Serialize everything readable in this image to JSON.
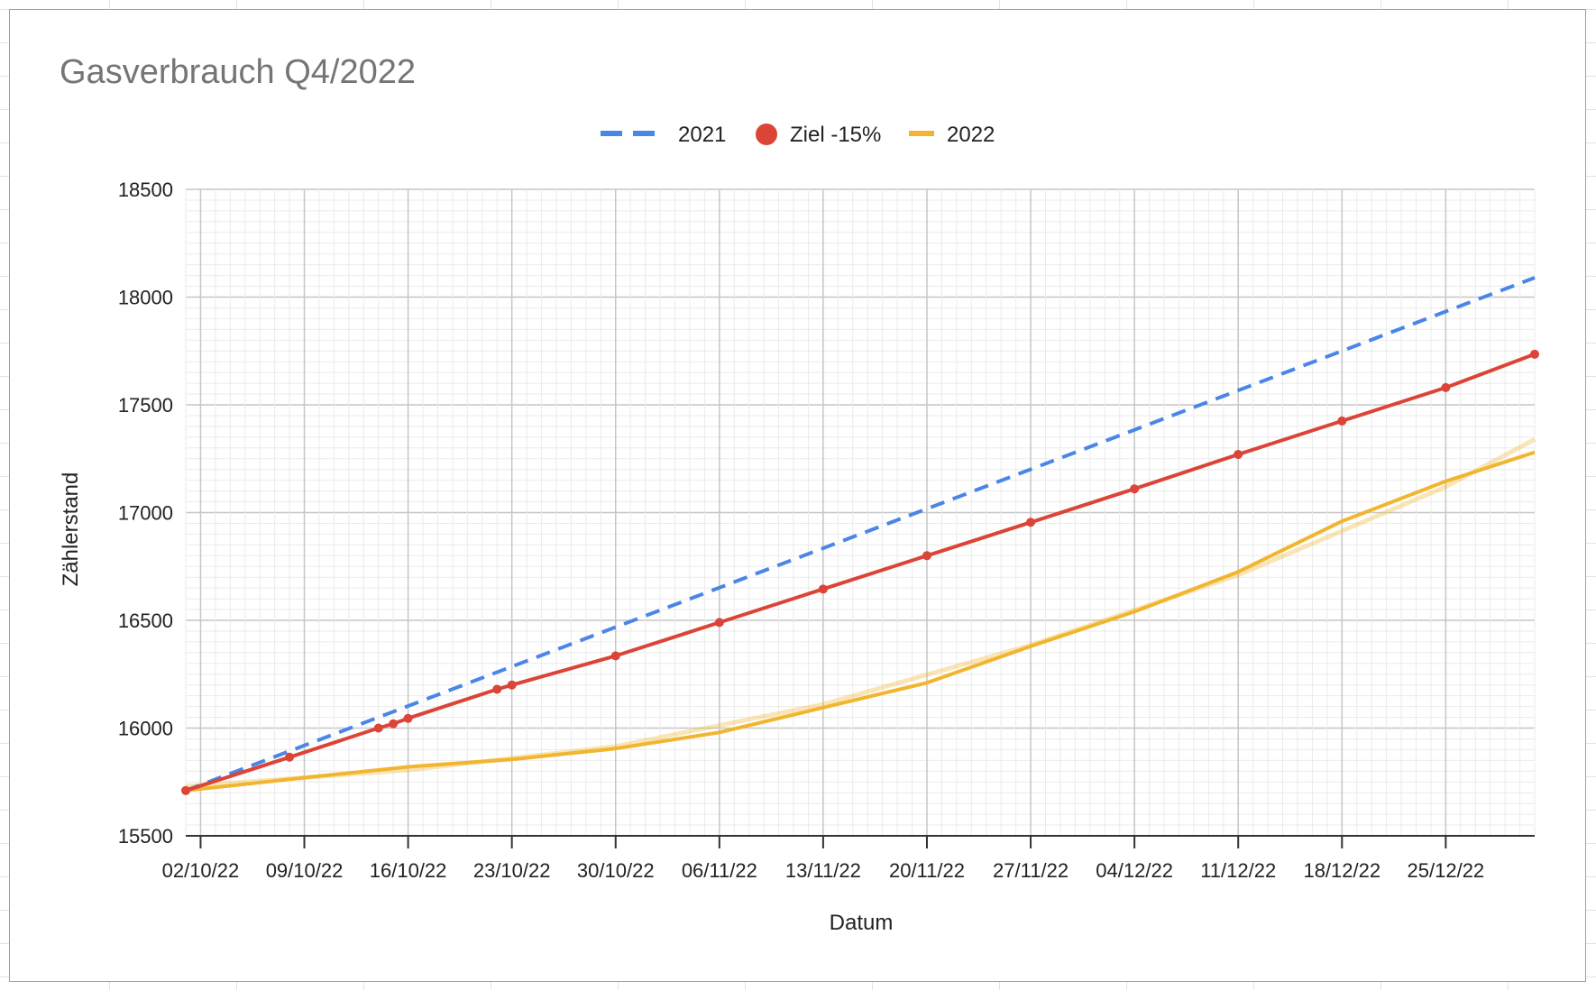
{
  "chart_data": {
    "type": "line",
    "title": "Gasverbrauch Q4/2022",
    "xlabel": "Datum",
    "ylabel": "Zählerstand",
    "ylim": [
      15500,
      18500
    ],
    "yticks": [
      15500,
      16000,
      16500,
      17000,
      17500,
      18000,
      18500
    ],
    "xticks": [
      "02/10/22",
      "09/10/22",
      "16/10/22",
      "23/10/22",
      "30/10/22",
      "06/11/22",
      "13/11/22",
      "20/11/22",
      "27/11/22",
      "04/12/22",
      "11/12/22",
      "18/12/22",
      "25/12/22"
    ],
    "xrange": [
      "2022-10-01",
      "2022-12-31"
    ],
    "legend_position": "top",
    "grid": true,
    "series": [
      {
        "name": "2021",
        "color": "#4a86e8",
        "style": "dashed",
        "points": [
          [
            "2022-10-01",
            15710
          ],
          [
            "2022-12-31",
            18090
          ]
        ]
      },
      {
        "name": "Ziel -15%",
        "color": "#db4437",
        "style": "solid-markers",
        "points": [
          [
            "2022-10-01",
            15710
          ],
          [
            "2022-10-08",
            15865
          ],
          [
            "2022-10-14",
            16000
          ],
          [
            "2022-10-15",
            16020
          ],
          [
            "2022-10-16",
            16045
          ],
          [
            "2022-10-22",
            16180
          ],
          [
            "2022-10-23",
            16200
          ],
          [
            "2022-10-30",
            16335
          ],
          [
            "2022-11-06",
            16490
          ],
          [
            "2022-11-13",
            16645
          ],
          [
            "2022-11-20",
            16800
          ],
          [
            "2022-11-27",
            16955
          ],
          [
            "2022-12-04",
            17110
          ],
          [
            "2022-12-11",
            17270
          ],
          [
            "2022-12-18",
            17425
          ],
          [
            "2022-12-25",
            17580
          ],
          [
            "2022-12-31",
            17735
          ]
        ]
      },
      {
        "name": "2022",
        "color": "#f1b52f",
        "style": "solid",
        "points": [
          [
            "2022-10-01",
            15710
          ],
          [
            "2022-10-09",
            15770
          ],
          [
            "2022-10-16",
            15820
          ],
          [
            "2022-10-23",
            15855
          ],
          [
            "2022-10-30",
            15905
          ],
          [
            "2022-11-06",
            15980
          ],
          [
            "2022-11-13",
            16095
          ],
          [
            "2022-11-20",
            16210
          ],
          [
            "2022-11-27",
            16380
          ],
          [
            "2022-12-04",
            16540
          ],
          [
            "2022-12-11",
            16725
          ],
          [
            "2022-12-18",
            16960
          ],
          [
            "2022-12-25",
            17145
          ],
          [
            "2022-12-31",
            17280
          ]
        ],
        "trendline": [
          [
            "2022-10-01",
            15730
          ],
          [
            "2022-10-16",
            15805
          ],
          [
            "2022-10-30",
            15915
          ],
          [
            "2022-11-13",
            16110
          ],
          [
            "2022-11-27",
            16385
          ],
          [
            "2022-12-11",
            16710
          ],
          [
            "2022-12-25",
            17120
          ],
          [
            "2022-12-31",
            17340
          ]
        ]
      }
    ]
  }
}
